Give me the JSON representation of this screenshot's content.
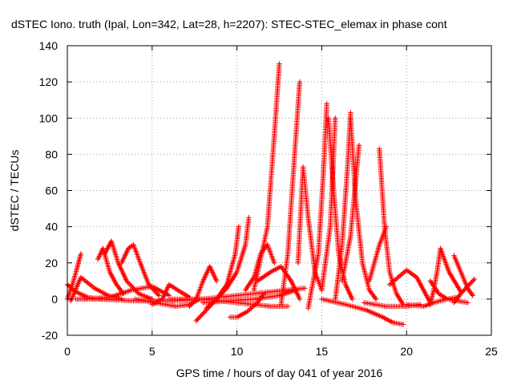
{
  "chart_data": {
    "type": "scatter",
    "title": "dSTEC Iono. truth (Ipal, Lon=342, Lat=28, h=2207): STEC-STEC_elemax in phase cont",
    "xlabel": "GPS time / hours of day 041 of year 2016",
    "ylabel": "dSTEC  / TECUs",
    "xlim": [
      0,
      25
    ],
    "ylim": [
      -20,
      140
    ],
    "x_ticks": [
      "0",
      "5",
      "10",
      "15",
      "20",
      "25"
    ],
    "y_ticks": [
      "-20",
      "0",
      "20",
      "40",
      "60",
      "80",
      "100",
      "120",
      "140"
    ],
    "x_tick_values": [
      0,
      5,
      10,
      15,
      20,
      25
    ],
    "y_tick_values": [
      -20,
      0,
      20,
      40,
      60,
      80,
      100,
      120,
      140
    ],
    "grid": true,
    "marker": "plus",
    "color": "#ff0000",
    "series": [
      {
        "x": [
          0.0,
          0.3,
          0.6,
          0.8
        ],
        "values": [
          0,
          8,
          18,
          25
        ]
      },
      {
        "x": [
          0.0,
          0.5,
          1.2,
          2.0,
          2.6
        ],
        "values": [
          8,
          4,
          1,
          0,
          0
        ]
      },
      {
        "x": [
          0.2,
          0.8,
          1.6,
          2.4,
          3.2
        ],
        "values": [
          -1,
          12,
          6,
          2,
          0
        ]
      },
      {
        "x": [
          1.8,
          2.1,
          2.5,
          2.9,
          3.3
        ],
        "values": [
          22,
          28,
          15,
          8,
          3
        ]
      },
      {
        "x": [
          2.2,
          2.6,
          3.0,
          3.5,
          4.2,
          5.0
        ],
        "values": [
          25,
          32,
          20,
          10,
          3,
          0
        ]
      },
      {
        "x": [
          3.2,
          3.6,
          3.9,
          4.3,
          4.8,
          5.4
        ],
        "values": [
          20,
          28,
          30,
          20,
          8,
          2
        ]
      },
      {
        "x": [
          1.0,
          2.5,
          3.8,
          5.0,
          6.0
        ],
        "values": [
          0,
          1,
          5,
          7,
          2
        ]
      },
      {
        "x": [
          5.0,
          5.6,
          6.0,
          6.5,
          7.2
        ],
        "values": [
          -3,
          0,
          8,
          5,
          1
        ]
      },
      {
        "x": [
          4.0,
          5.2,
          6.4,
          7.2,
          7.8
        ],
        "values": [
          0,
          -2,
          -4,
          -3,
          0
        ]
      },
      {
        "x": [
          7.2,
          7.6,
          8.0,
          8.4,
          8.8
        ],
        "values": [
          -4,
          0,
          10,
          18,
          10
        ]
      },
      {
        "x": [
          7.6,
          8.2,
          8.8,
          9.4,
          9.9,
          10.1
        ],
        "values": [
          -12,
          -6,
          0,
          8,
          25,
          40
        ]
      },
      {
        "x": [
          8.2,
          8.8,
          9.4,
          10.0,
          10.5,
          10.7
        ],
        "values": [
          -5,
          0,
          6,
          15,
          30,
          45
        ]
      },
      {
        "x": [
          9.6,
          10.0,
          10.6,
          11.2,
          11.6
        ],
        "values": [
          -10,
          -10,
          -7,
          -2,
          3
        ]
      },
      {
        "x": [
          10.5,
          11.0,
          11.4,
          11.8,
          12.2
        ],
        "values": [
          5,
          12,
          25,
          30,
          20
        ]
      },
      {
        "x": [
          11.0,
          11.8,
          12.2,
          12.5
        ],
        "values": [
          5,
          40,
          90,
          130
        ]
      },
      {
        "x": [
          11.2,
          12.0,
          12.6,
          13.2,
          13.7
        ],
        "values": [
          10,
          15,
          18,
          10,
          0
        ]
      },
      {
        "x": [
          12.6,
          13.0,
          13.4,
          13.7
        ],
        "values": [
          -3,
          25,
          80,
          120
        ]
      },
      {
        "x": [
          13.6,
          13.9,
          14.2,
          14.6,
          15.0
        ],
        "values": [
          20,
          73,
          45,
          15,
          5
        ]
      },
      {
        "x": [
          14.2,
          14.8,
          15.1,
          15.3
        ],
        "values": [
          -5,
          25,
          70,
          108
        ]
      },
      {
        "x": [
          15.4,
          15.7,
          16.0,
          16.4,
          16.8
        ],
        "values": [
          100,
          60,
          25,
          8,
          0
        ]
      },
      {
        "x": [
          15.0,
          15.5,
          15.8
        ],
        "values": [
          5,
          40,
          100
        ]
      },
      {
        "x": [
          15.8,
          16.2,
          16.5,
          16.7
        ],
        "values": [
          0,
          30,
          70,
          103
        ]
      },
      {
        "x": [
          16.7,
          17.0,
          17.4,
          17.8,
          18.2
        ],
        "values": [
          100,
          55,
          20,
          5,
          0
        ]
      },
      {
        "x": [
          16.2,
          16.7,
          17.0,
          17.2
        ],
        "values": [
          10,
          35,
          65,
          85
        ]
      },
      {
        "x": [
          18.4,
          18.7,
          19.0,
          19.4,
          19.8
        ],
        "values": [
          83,
          40,
          15,
          3,
          -3
        ]
      },
      {
        "x": [
          17.8,
          18.4,
          18.8
        ],
        "values": [
          10,
          30,
          40
        ]
      },
      {
        "x": [
          15.0,
          16.4,
          17.6,
          18.6,
          19.2,
          19.8
        ],
        "values": [
          0,
          -3,
          -6,
          -10,
          -13,
          -14
        ]
      },
      {
        "x": [
          17.5,
          18.8,
          20.0,
          20.8
        ],
        "values": [
          -2,
          -4,
          -4,
          -3
        ]
      },
      {
        "x": [
          19.0,
          20.0,
          20.6,
          21.0,
          21.4
        ],
        "values": [
          8,
          16,
          12,
          5,
          -2
        ]
      },
      {
        "x": [
          20.0,
          21.0,
          21.6,
          22.4,
          23.0
        ],
        "values": [
          -3,
          -4,
          -2,
          0,
          1
        ]
      },
      {
        "x": [
          21.4,
          21.6,
          21.8,
          22.0,
          22.5,
          23.2
        ],
        "values": [
          -3,
          5,
          15,
          28,
          15,
          4
        ]
      },
      {
        "x": [
          21.4,
          21.9,
          22.4,
          23.0,
          23.6
        ],
        "values": [
          10,
          3,
          0,
          -1,
          -2
        ]
      },
      {
        "x": [
          22.8,
          23.2,
          23.6,
          23.9
        ],
        "values": [
          24,
          15,
          6,
          2
        ]
      },
      {
        "x": [
          22.8,
          23.2,
          23.6,
          24.0
        ],
        "values": [
          -2,
          3,
          7,
          11
        ]
      },
      {
        "x": [
          0.5,
          2.0,
          4.0,
          6.0,
          8.0,
          10.0,
          12.0,
          14.0
        ],
        "values": [
          0,
          0,
          -1,
          -1,
          0,
          2,
          4,
          6
        ]
      },
      {
        "x": [
          6.0,
          8.0,
          10.0,
          12.0,
          13.0
        ],
        "values": [
          0,
          0,
          -2,
          -4,
          -4
        ]
      },
      {
        "x": [
          8.0,
          9.5,
          11.0,
          12.5,
          13.5
        ],
        "values": [
          -2,
          -1,
          0,
          2,
          5
        ]
      }
    ]
  }
}
